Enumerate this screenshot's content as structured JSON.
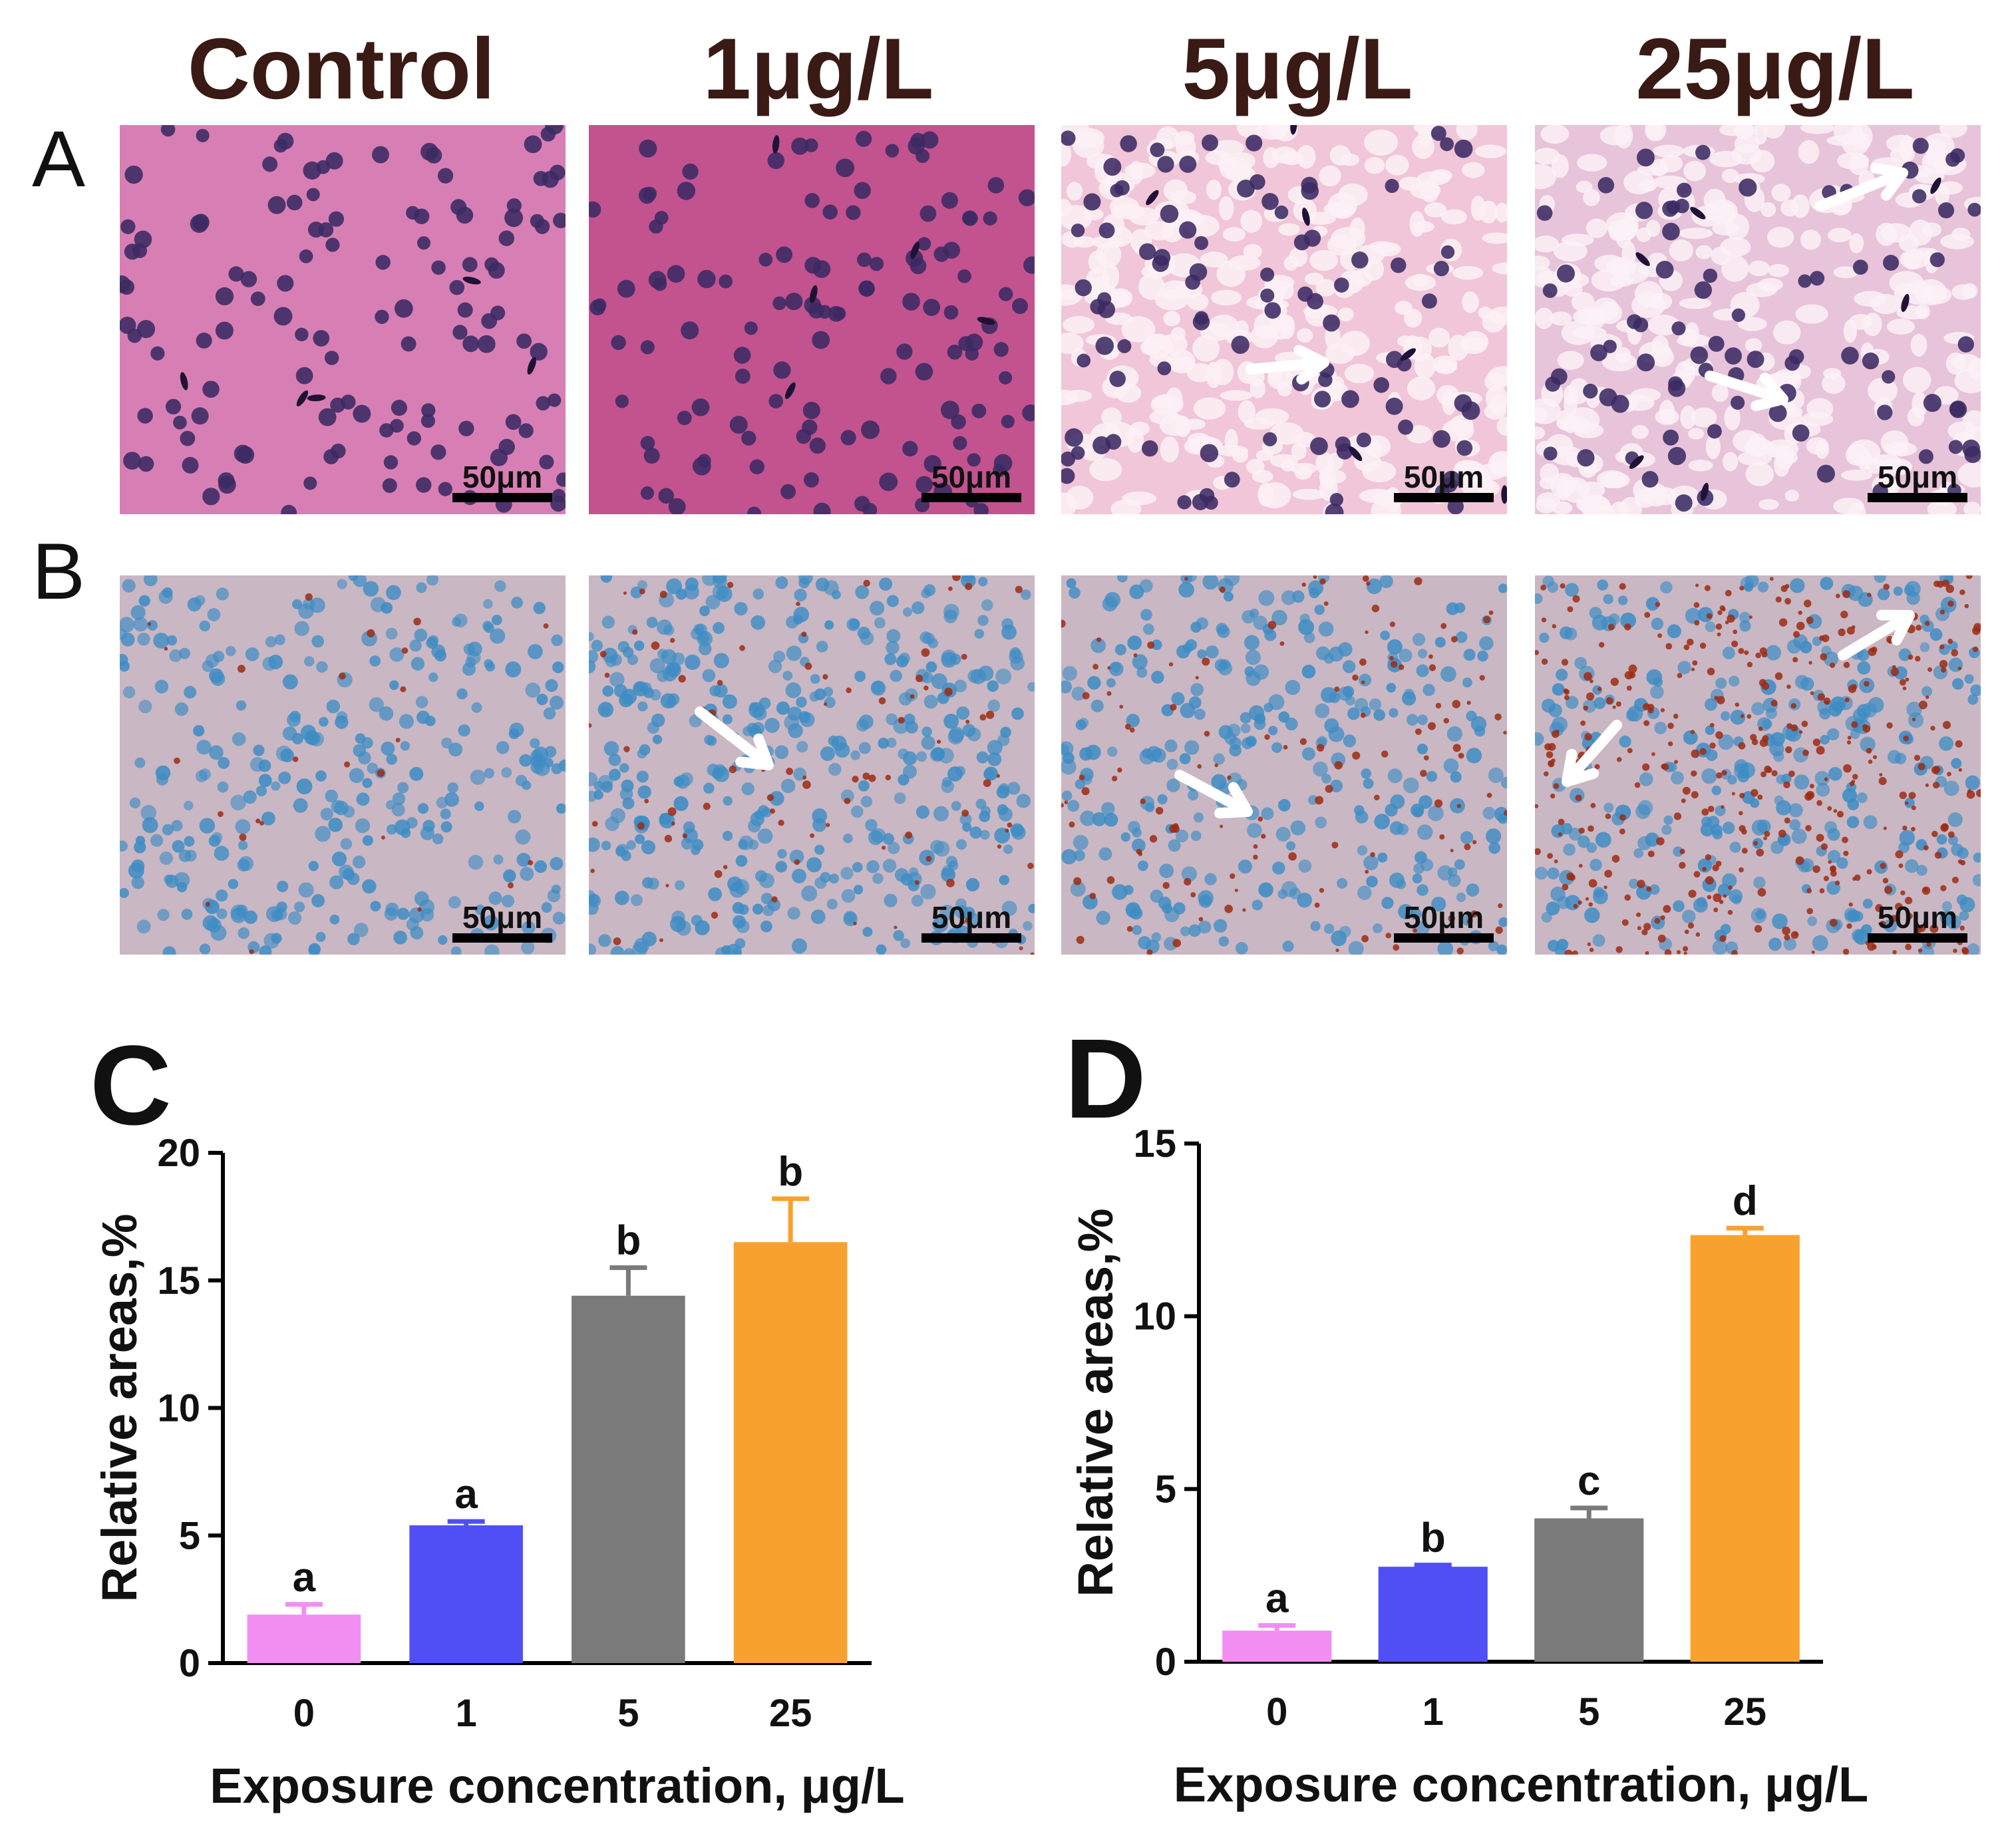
{
  "figure": {
    "columns": [
      "Control",
      "1μg/L",
      "5μg/L",
      "25μg/L"
    ],
    "rows": [
      {
        "label": "A",
        "stain": "hematoxylin-eosin"
      },
      {
        "label": "B",
        "stain": "oil-red-o"
      }
    ],
    "scale_bar_label": "50μm",
    "colors": {
      "he_background": "#d07aa8",
      "he_nucleus": "#3b2a63",
      "oro_background": "#c9b7c3",
      "oro_nucleus": "#3d8cc4",
      "oro_lipid": "#9c2b14",
      "arrow": "#ffffff"
    }
  },
  "chart_data": [
    {
      "panel": "C",
      "type": "bar",
      "categories": [
        "0",
        "1",
        "5",
        "25"
      ],
      "values": [
        1.9,
        5.4,
        14.4,
        16.5
      ],
      "errors": [
        0.4,
        0.15,
        1.1,
        1.7
      ],
      "letters": [
        "a",
        "a",
        "b",
        "b"
      ],
      "colors": [
        "#f28ef2",
        "#4f4ff5",
        "#7a7a7a",
        "#f8a12f"
      ],
      "ylim": [
        0,
        20
      ],
      "yticks": [
        "0",
        "5",
        "10",
        "15",
        "20"
      ],
      "ylabel": "Relative areas,%",
      "xlabel": "Exposure concentration, μg/L"
    },
    {
      "panel": "D",
      "type": "bar",
      "categories": [
        "0",
        "1",
        "5",
        "25"
      ],
      "values": [
        0.9,
        2.75,
        4.15,
        12.35
      ],
      "errors": [
        0.15,
        0.05,
        0.3,
        0.2
      ],
      "letters": [
        "a",
        "b",
        "c",
        "d"
      ],
      "colors": [
        "#f28ef2",
        "#4f4ff5",
        "#7a7a7a",
        "#f8a12f"
      ],
      "ylim": [
        0,
        15
      ],
      "yticks": [
        "0",
        "5",
        "10",
        "15"
      ],
      "ylabel": "Relative areas,%",
      "xlabel": "Exposure concentration, μg/L"
    }
  ]
}
